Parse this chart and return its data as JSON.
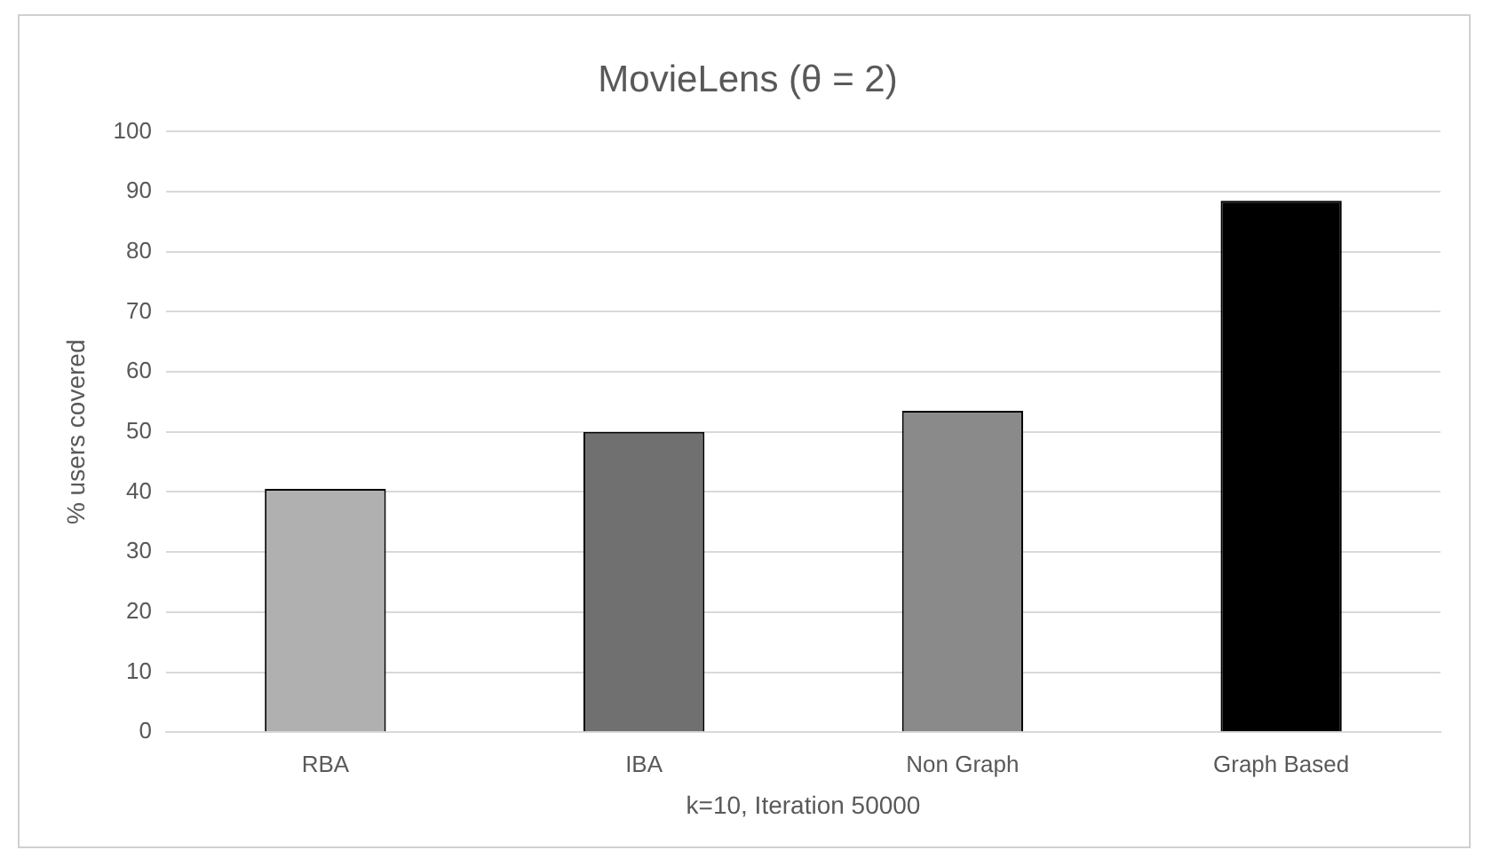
{
  "chart_data": {
    "type": "bar",
    "title": "MovieLens (θ = 2)",
    "xlabel": "k=10, Iteration 50000",
    "ylabel": "% users covered",
    "categories": [
      "RBA",
      "IBA",
      "Non Graph",
      "Graph Based"
    ],
    "values": [
      40.5,
      50,
      53.5,
      88.5
    ],
    "colors": [
      "#b0b0b0",
      "#707070",
      "#8a8a8a",
      "#000000"
    ],
    "ylim": [
      0,
      100
    ],
    "yticks": [
      0,
      10,
      20,
      30,
      40,
      50,
      60,
      70,
      80,
      90,
      100
    ],
    "grid": "y",
    "legend": false
  }
}
